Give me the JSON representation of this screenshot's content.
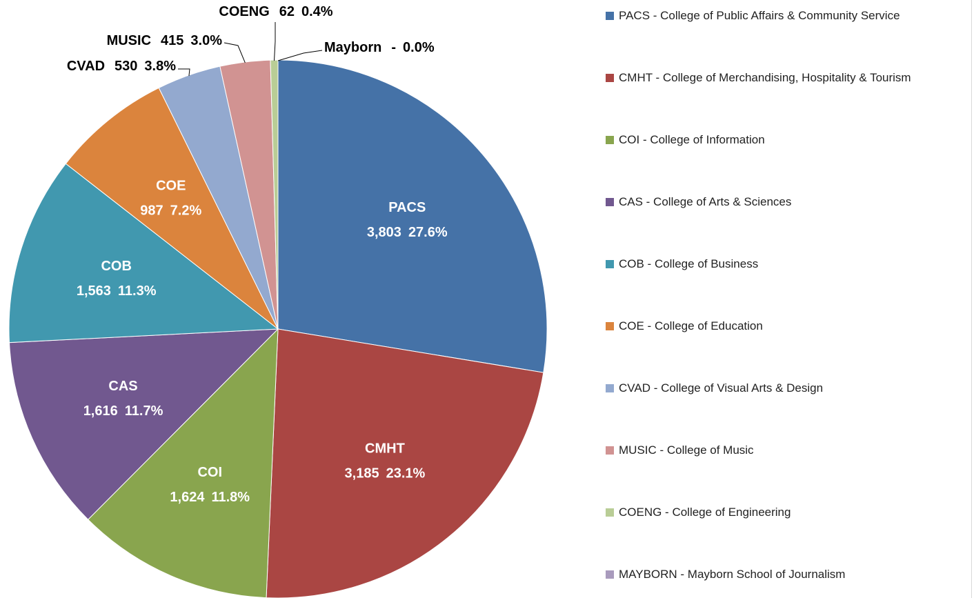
{
  "chart_data": {
    "type": "pie",
    "categories": [
      "PACS - College of Public Affairs & Community Service",
      "CMHT - College of Merchandising, Hospitality & Tourism",
      "COI - College of Information",
      "CAS - College of Arts & Sciences",
      "COB - College of Business",
      "COE - College of Education",
      "CVAD - College of Visual Arts & Design",
      "MUSIC - College of Music",
      "COENG - College of Engineering",
      "MAYBORN - Mayborn School of Journalism"
    ],
    "labels": [
      "PACS",
      "CMHT",
      "COI",
      "CAS",
      "COB",
      "COE",
      "CVAD",
      "MUSIC",
      "COENG",
      "Mayborn"
    ],
    "values": [
      3803,
      3185,
      1624,
      1616,
      1563,
      987,
      530,
      415,
      62,
      0
    ],
    "value_labels": [
      "3,803",
      "3,185",
      "1,624",
      "1,616",
      "1,563",
      "987",
      "530",
      "415",
      "62",
      "-"
    ],
    "percent_labels": [
      "27.6%",
      "23.1%",
      "11.8%",
      "11.7%",
      "11.3%",
      "7.2%",
      "3.8%",
      "3.0%",
      "0.4%",
      "0.0%"
    ],
    "colors": [
      "#4572a7",
      "#aa4643",
      "#89a54e",
      "#71588f",
      "#4198af",
      "#db843d",
      "#93a9cf",
      "#d19392",
      "#b9cd96",
      "#a99bbd"
    ]
  }
}
